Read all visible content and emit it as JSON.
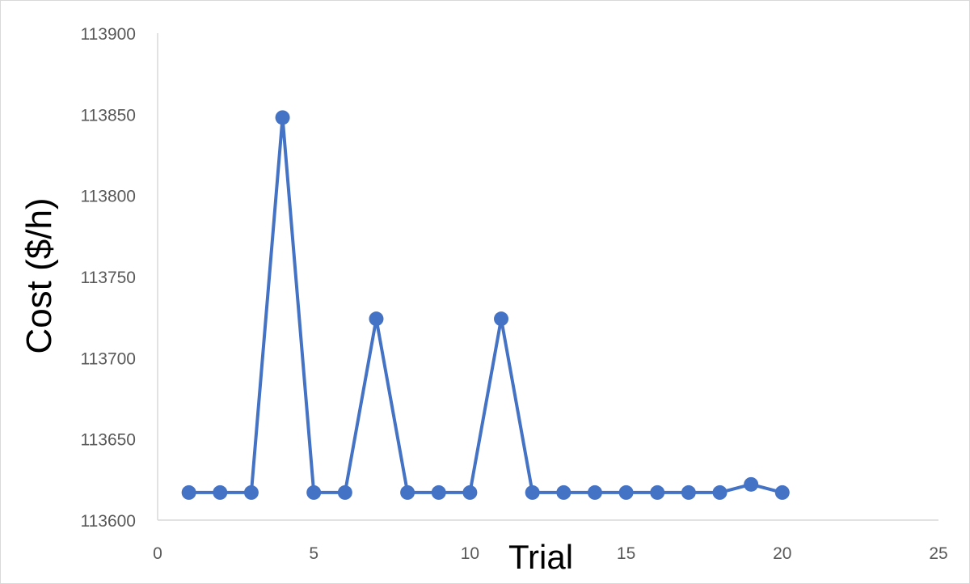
{
  "chart_data": {
    "type": "line",
    "xlabel": "Trial",
    "ylabel": "Cost ($/h)",
    "xlim": [
      0,
      25
    ],
    "ylim": [
      113600,
      113900
    ],
    "x_ticks": [
      "0",
      "5",
      "10",
      "15",
      "20",
      "25"
    ],
    "y_ticks": [
      "113600",
      "113650",
      "113700",
      "113750",
      "113800",
      "113850",
      "113900"
    ],
    "grid": false,
    "legend": "none",
    "series_color": "#4472C4",
    "series": [
      {
        "x": [
          1,
          2,
          3,
          4,
          5,
          6,
          7,
          8,
          9,
          10,
          11,
          12,
          13,
          14,
          15,
          16,
          17,
          18,
          19,
          20
        ],
        "values": [
          113617,
          113617,
          113617,
          113848,
          113617,
          113617,
          113724,
          113617,
          113617,
          113617,
          113724,
          113617,
          113617,
          113617,
          113617,
          113617,
          113617,
          113617,
          113622,
          113617
        ]
      }
    ]
  }
}
